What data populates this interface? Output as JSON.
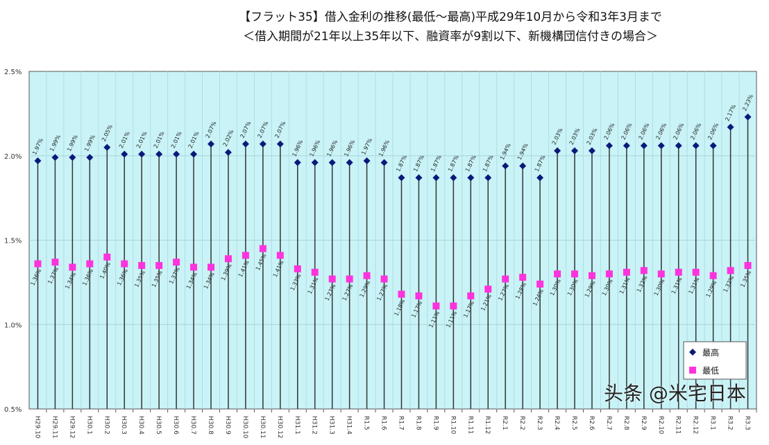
{
  "chart_data": {
    "type": "scatter",
    "title": "【フラット35】借入金利の推移(最低～最高)平成29年10月から令和3年3月まで",
    "subtitle": "＜借入期間が21年以上35年以下、融資率が9割以下、新機構団信付きの場合＞",
    "ylim": [
      0.5,
      2.5
    ],
    "yticks": [
      "0.5%",
      "1.0%",
      "1.5%",
      "2.0%",
      "2.5%"
    ],
    "grid": true,
    "legend_position": "bottom-right",
    "categories": [
      "H29.10",
      "H29.11",
      "H29.12",
      "H30.1",
      "H30.2",
      "H30.3",
      "H30.4",
      "H30.5",
      "H30.6",
      "H30.7",
      "H30.8",
      "H30.9",
      "H30.10",
      "H30.11",
      "H30.12",
      "H31.1",
      "H31.2",
      "H31.3",
      "H31.4",
      "R1.5",
      "R1.6",
      "R1.7",
      "R1.8",
      "R1.9",
      "R1.10",
      "R1.11",
      "R1.12",
      "R2.1",
      "R2.2",
      "R2.3",
      "R2.4",
      "R2.5",
      "R2.6",
      "R2.7",
      "R2.8",
      "R2.9",
      "R2.10",
      "R2.11",
      "R2.12",
      "R3.1",
      "R3.2",
      "R3.3"
    ],
    "series": [
      {
        "name": "最高",
        "color": "#0a1a7a",
        "marker": "diamond",
        "values": [
          1.97,
          1.99,
          1.99,
          1.99,
          2.05,
          2.01,
          2.01,
          2.01,
          2.01,
          2.01,
          2.07,
          2.02,
          2.07,
          2.07,
          2.07,
          1.96,
          1.96,
          1.96,
          1.96,
          1.97,
          1.96,
          1.87,
          1.87,
          1.87,
          1.87,
          1.87,
          1.87,
          1.94,
          1.94,
          1.87,
          2.03,
          2.03,
          2.03,
          2.06,
          2.06,
          2.06,
          2.06,
          2.06,
          2.06,
          2.06,
          2.17,
          2.23
        ]
      },
      {
        "name": "最低",
        "color": "#ff33dd",
        "marker": "square",
        "values": [
          1.36,
          1.37,
          1.34,
          1.36,
          1.4,
          1.36,
          1.35,
          1.35,
          1.37,
          1.34,
          1.34,
          1.39,
          1.41,
          1.45,
          1.41,
          1.33,
          1.31,
          1.27,
          1.27,
          1.29,
          1.27,
          1.18,
          1.17,
          1.11,
          1.11,
          1.17,
          1.21,
          1.27,
          1.28,
          1.24,
          1.3,
          1.3,
          1.29,
          1.3,
          1.31,
          1.32,
          1.3,
          1.31,
          1.31,
          1.29,
          1.32,
          1.35
        ]
      }
    ]
  },
  "watermark": "头条 @米宅日本"
}
